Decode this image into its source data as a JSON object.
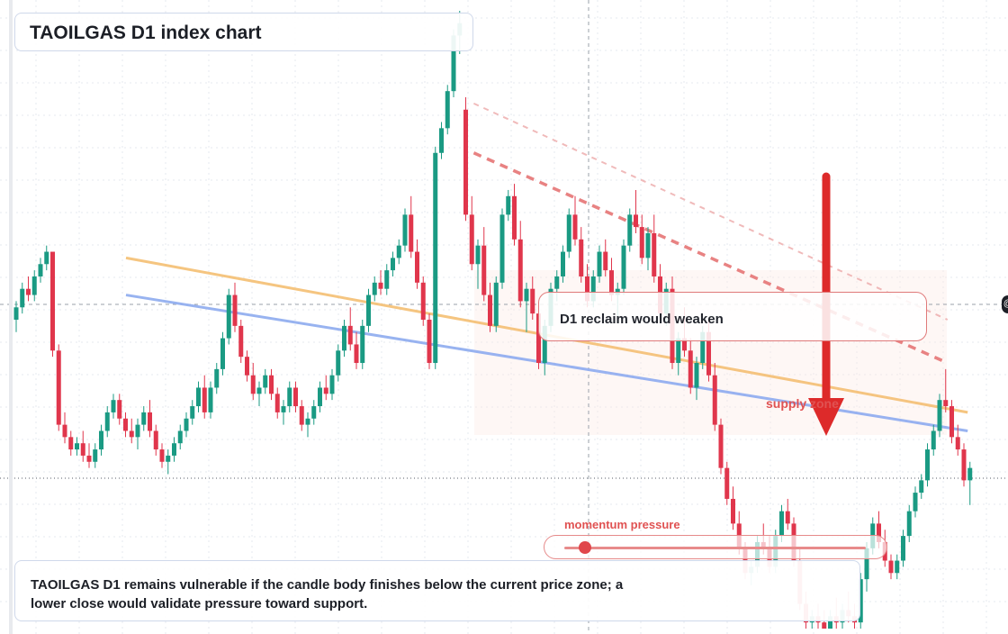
{
  "title": "TAOILGAS D1 index chart",
  "callout": {
    "text": "D1 reclaim would weaken"
  },
  "supply_label": "supply zone",
  "momentum": {
    "label": "momentum pressure",
    "level": 0.07
  },
  "bottom_text": "TAOILGAS D1 remains vulnerable if the candle body finishes below the current price zone; a lower close would validate pressure toward support.",
  "colors": {
    "up": "#1a9a83",
    "down": "#e0364c",
    "yellow_line": "#f5c27a",
    "blue_line": "#93aff0",
    "arrow": "#dd2a2a",
    "dash_red": "#e77c7c"
  },
  "chart_data": {
    "type": "candlestick",
    "title": "TAOILGAS D1 index chart",
    "ylim": [
      0,
      100
    ],
    "grid": true,
    "candles": [
      {
        "o": 50,
        "h": 53,
        "l": 48,
        "c": 52
      },
      {
        "o": 52,
        "h": 56,
        "l": 51,
        "c": 55
      },
      {
        "o": 55,
        "h": 57,
        "l": 53,
        "c": 54
      },
      {
        "o": 54,
        "h": 58,
        "l": 53,
        "c": 57
      },
      {
        "o": 57,
        "h": 60,
        "l": 56,
        "c": 59
      },
      {
        "o": 59,
        "h": 62,
        "l": 58,
        "c": 61
      },
      {
        "o": 61,
        "h": 60,
        "l": 44,
        "c": 45
      },
      {
        "o": 45,
        "h": 46,
        "l": 32,
        "c": 33
      },
      {
        "o": 33,
        "h": 35,
        "l": 30,
        "c": 31
      },
      {
        "o": 31,
        "h": 32,
        "l": 28,
        "c": 29
      },
      {
        "o": 29,
        "h": 31,
        "l": 28,
        "c": 30
      },
      {
        "o": 30,
        "h": 32,
        "l": 27,
        "c": 28
      },
      {
        "o": 28,
        "h": 30,
        "l": 26,
        "c": 27
      },
      {
        "o": 27,
        "h": 30,
        "l": 26,
        "c": 29
      },
      {
        "o": 29,
        "h": 33,
        "l": 28,
        "c": 32
      },
      {
        "o": 32,
        "h": 36,
        "l": 31,
        "c": 35
      },
      {
        "o": 35,
        "h": 38,
        "l": 34,
        "c": 37
      },
      {
        "o": 37,
        "h": 38,
        "l": 33,
        "c": 34
      },
      {
        "o": 34,
        "h": 35,
        "l": 31,
        "c": 32
      },
      {
        "o": 32,
        "h": 34,
        "l": 30,
        "c": 31
      },
      {
        "o": 31,
        "h": 34,
        "l": 29,
        "c": 33
      },
      {
        "o": 33,
        "h": 36,
        "l": 32,
        "c": 35
      },
      {
        "o": 35,
        "h": 37,
        "l": 31,
        "c": 32
      },
      {
        "o": 32,
        "h": 33,
        "l": 28,
        "c": 29
      },
      {
        "o": 29,
        "h": 30,
        "l": 26,
        "c": 27
      },
      {
        "o": 27,
        "h": 29,
        "l": 25,
        "c": 28
      },
      {
        "o": 28,
        "h": 31,
        "l": 27,
        "c": 30
      },
      {
        "o": 30,
        "h": 33,
        "l": 29,
        "c": 32
      },
      {
        "o": 32,
        "h": 35,
        "l": 31,
        "c": 34
      },
      {
        "o": 34,
        "h": 37,
        "l": 33,
        "c": 36
      },
      {
        "o": 36,
        "h": 40,
        "l": 35,
        "c": 39
      },
      {
        "o": 39,
        "h": 41,
        "l": 34,
        "c": 35
      },
      {
        "o": 35,
        "h": 40,
        "l": 34,
        "c": 39
      },
      {
        "o": 39,
        "h": 43,
        "l": 38,
        "c": 42
      },
      {
        "o": 42,
        "h": 48,
        "l": 41,
        "c": 47
      },
      {
        "o": 47,
        "h": 55,
        "l": 46,
        "c": 54
      },
      {
        "o": 54,
        "h": 56,
        "l": 48,
        "c": 49
      },
      {
        "o": 49,
        "h": 50,
        "l": 43,
        "c": 44
      },
      {
        "o": 44,
        "h": 45,
        "l": 40,
        "c": 41
      },
      {
        "o": 41,
        "h": 43,
        "l": 37,
        "c": 38
      },
      {
        "o": 38,
        "h": 40,
        "l": 36,
        "c": 39
      },
      {
        "o": 39,
        "h": 42,
        "l": 38,
        "c": 41
      },
      {
        "o": 41,
        "h": 42,
        "l": 37,
        "c": 38
      },
      {
        "o": 38,
        "h": 39,
        "l": 34,
        "c": 35
      },
      {
        "o": 35,
        "h": 37,
        "l": 33,
        "c": 36
      },
      {
        "o": 36,
        "h": 40,
        "l": 35,
        "c": 39
      },
      {
        "o": 39,
        "h": 40,
        "l": 35,
        "c": 36
      },
      {
        "o": 36,
        "h": 37,
        "l": 32,
        "c": 33
      },
      {
        "o": 33,
        "h": 35,
        "l": 31,
        "c": 34
      },
      {
        "o": 34,
        "h": 37,
        "l": 33,
        "c": 36
      },
      {
        "o": 36,
        "h": 40,
        "l": 35,
        "c": 39
      },
      {
        "o": 39,
        "h": 41,
        "l": 37,
        "c": 38
      },
      {
        "o": 38,
        "h": 42,
        "l": 37,
        "c": 41
      },
      {
        "o": 41,
        "h": 46,
        "l": 40,
        "c": 45
      },
      {
        "o": 45,
        "h": 50,
        "l": 44,
        "c": 49
      },
      {
        "o": 49,
        "h": 52,
        "l": 45,
        "c": 46
      },
      {
        "o": 46,
        "h": 48,
        "l": 42,
        "c": 43
      },
      {
        "o": 43,
        "h": 50,
        "l": 42,
        "c": 49
      },
      {
        "o": 49,
        "h": 55,
        "l": 48,
        "c": 54
      },
      {
        "o": 54,
        "h": 57,
        "l": 53,
        "c": 56
      },
      {
        "o": 56,
        "h": 58,
        "l": 54,
        "c": 55
      },
      {
        "o": 55,
        "h": 59,
        "l": 54,
        "c": 58
      },
      {
        "o": 58,
        "h": 61,
        "l": 57,
        "c": 60
      },
      {
        "o": 60,
        "h": 63,
        "l": 59,
        "c": 62
      },
      {
        "o": 62,
        "h": 68,
        "l": 61,
        "c": 67
      },
      {
        "o": 67,
        "h": 70,
        "l": 60,
        "c": 61
      },
      {
        "o": 61,
        "h": 63,
        "l": 55,
        "c": 56
      },
      {
        "o": 56,
        "h": 57,
        "l": 49,
        "c": 50
      },
      {
        "o": 50,
        "h": 51,
        "l": 42,
        "c": 43
      },
      {
        "o": 43,
        "h": 78,
        "l": 42,
        "c": 77
      },
      {
        "o": 77,
        "h": 82,
        "l": 76,
        "c": 81
      },
      {
        "o": 81,
        "h": 88,
        "l": 80,
        "c": 87
      },
      {
        "o": 87,
        "h": 97,
        "l": 86,
        "c": 96
      },
      {
        "o": 96,
        "h": 100,
        "l": 93,
        "c": 98
      },
      {
        "o": 84,
        "h": 86,
        "l": 66,
        "c": 67
      },
      {
        "o": 67,
        "h": 70,
        "l": 58,
        "c": 59
      },
      {
        "o": 59,
        "h": 63,
        "l": 55,
        "c": 62
      },
      {
        "o": 62,
        "h": 65,
        "l": 53,
        "c": 54
      },
      {
        "o": 54,
        "h": 56,
        "l": 48,
        "c": 49
      },
      {
        "o": 49,
        "h": 57,
        "l": 48,
        "c": 56
      },
      {
        "o": 56,
        "h": 68,
        "l": 55,
        "c": 67
      },
      {
        "o": 67,
        "h": 71,
        "l": 66,
        "c": 70
      },
      {
        "o": 70,
        "h": 72,
        "l": 62,
        "c": 63
      },
      {
        "o": 63,
        "h": 66,
        "l": 52,
        "c": 53
      },
      {
        "o": 53,
        "h": 56,
        "l": 48,
        "c": 55
      },
      {
        "o": 55,
        "h": 57,
        "l": 50,
        "c": 51
      },
      {
        "o": 51,
        "h": 52,
        "l": 42,
        "c": 43
      },
      {
        "o": 43,
        "h": 50,
        "l": 41,
        "c": 49
      },
      {
        "o": 49,
        "h": 56,
        "l": 48,
        "c": 55
      },
      {
        "o": 55,
        "h": 58,
        "l": 53,
        "c": 57
      },
      {
        "o": 57,
        "h": 62,
        "l": 56,
        "c": 61
      },
      {
        "o": 61,
        "h": 68,
        "l": 60,
        "c": 67
      },
      {
        "o": 67,
        "h": 70,
        "l": 62,
        "c": 63
      },
      {
        "o": 63,
        "h": 65,
        "l": 56,
        "c": 57
      },
      {
        "o": 57,
        "h": 59,
        "l": 52,
        "c": 53
      },
      {
        "o": 53,
        "h": 58,
        "l": 52,
        "c": 57
      },
      {
        "o": 57,
        "h": 62,
        "l": 56,
        "c": 61
      },
      {
        "o": 61,
        "h": 63,
        "l": 57,
        "c": 58
      },
      {
        "o": 58,
        "h": 60,
        "l": 53,
        "c": 54
      },
      {
        "o": 54,
        "h": 56,
        "l": 50,
        "c": 55
      },
      {
        "o": 55,
        "h": 63,
        "l": 54,
        "c": 62
      },
      {
        "o": 62,
        "h": 68,
        "l": 61,
        "c": 67
      },
      {
        "o": 67,
        "h": 71,
        "l": 64,
        "c": 65
      },
      {
        "o": 65,
        "h": 67,
        "l": 59,
        "c": 60
      },
      {
        "o": 60,
        "h": 65,
        "l": 58,
        "c": 64
      },
      {
        "o": 64,
        "h": 67,
        "l": 56,
        "c": 57
      },
      {
        "o": 57,
        "h": 59,
        "l": 50,
        "c": 51
      },
      {
        "o": 51,
        "h": 56,
        "l": 49,
        "c": 55
      },
      {
        "o": 55,
        "h": 57,
        "l": 42,
        "c": 43
      },
      {
        "o": 43,
        "h": 48,
        "l": 41,
        "c": 47
      },
      {
        "o": 47,
        "h": 52,
        "l": 44,
        "c": 45
      },
      {
        "o": 45,
        "h": 47,
        "l": 38,
        "c": 39
      },
      {
        "o": 39,
        "h": 44,
        "l": 37,
        "c": 43
      },
      {
        "o": 43,
        "h": 49,
        "l": 42,
        "c": 48
      },
      {
        "o": 48,
        "h": 50,
        "l": 40,
        "c": 41
      },
      {
        "o": 41,
        "h": 43,
        "l": 32,
        "c": 33
      },
      {
        "o": 33,
        "h": 34,
        "l": 25,
        "c": 26
      },
      {
        "o": 26,
        "h": 27,
        "l": 20,
        "c": 21
      },
      {
        "o": 21,
        "h": 23,
        "l": 16,
        "c": 17
      },
      {
        "o": 17,
        "h": 19,
        "l": 12,
        "c": 13
      },
      {
        "o": 13,
        "h": 14,
        "l": 8,
        "c": 9
      },
      {
        "o": 9,
        "h": 11,
        "l": 7,
        "c": 10
      },
      {
        "o": 10,
        "h": 15,
        "l": 9,
        "c": 14
      },
      {
        "o": 14,
        "h": 17,
        "l": 12,
        "c": 13
      },
      {
        "o": 13,
        "h": 15,
        "l": 9,
        "c": 10
      },
      {
        "o": 10,
        "h": 16,
        "l": 9,
        "c": 15
      },
      {
        "o": 15,
        "h": 20,
        "l": 14,
        "c": 19
      },
      {
        "o": 19,
        "h": 21,
        "l": 16,
        "c": 17
      },
      {
        "o": 17,
        "h": 18,
        "l": 10,
        "c": 11
      },
      {
        "o": 11,
        "h": 13,
        "l": 3,
        "c": 4
      },
      {
        "o": 4,
        "h": 6,
        "l": 0,
        "c": 1
      },
      {
        "o": 1,
        "h": 3,
        "l": 0,
        "c": 2
      },
      {
        "o": 2,
        "h": 4,
        "l": 0,
        "c": 1
      },
      {
        "o": 1,
        "h": 3,
        "l": 0,
        "c": 0
      },
      {
        "o": 0,
        "h": 3,
        "l": 0,
        "c": 2
      },
      {
        "o": 2,
        "h": 5,
        "l": 0,
        "c": 1
      },
      {
        "o": 1,
        "h": 4,
        "l": 0,
        "c": 3
      },
      {
        "o": 3,
        "h": 6,
        "l": 1,
        "c": 2
      },
      {
        "o": 2,
        "h": 4,
        "l": 0,
        "c": 1
      },
      {
        "o": 1,
        "h": 9,
        "l": 0,
        "c": 8
      },
      {
        "o": 8,
        "h": 14,
        "l": 6,
        "c": 13
      },
      {
        "o": 13,
        "h": 18,
        "l": 12,
        "c": 17
      },
      {
        "o": 17,
        "h": 19,
        "l": 13,
        "c": 14
      },
      {
        "o": 14,
        "h": 16,
        "l": 10,
        "c": 11
      },
      {
        "o": 11,
        "h": 12,
        "l": 8,
        "c": 9
      },
      {
        "o": 9,
        "h": 12,
        "l": 8,
        "c": 11
      },
      {
        "o": 11,
        "h": 16,
        "l": 10,
        "c": 15
      },
      {
        "o": 15,
        "h": 20,
        "l": 14,
        "c": 19
      },
      {
        "o": 19,
        "h": 23,
        "l": 18,
        "c": 22
      },
      {
        "o": 22,
        "h": 25,
        "l": 21,
        "c": 24
      },
      {
        "o": 24,
        "h": 30,
        "l": 23,
        "c": 29
      },
      {
        "o": 29,
        "h": 33,
        "l": 28,
        "c": 32
      },
      {
        "o": 32,
        "h": 38,
        "l": 31,
        "c": 37
      },
      {
        "o": 37,
        "h": 42,
        "l": 35,
        "c": 36
      },
      {
        "o": 36,
        "h": 37,
        "l": 30,
        "c": 31
      },
      {
        "o": 31,
        "h": 33,
        "l": 28,
        "c": 29
      },
      {
        "o": 29,
        "h": 30,
        "l": 23,
        "c": 24
      },
      {
        "o": 24,
        "h": 27,
        "l": 20,
        "c": 26
      }
    ],
    "lines": [
      {
        "name": "",
        "style": "solid",
        "color": "#f5c27a",
        "points": [
          [
            0.125,
            60
          ],
          [
            0.96,
            35
          ]
        ]
      },
      {
        "name": "",
        "style": "solid",
        "color": "#93aff0",
        "points": [
          [
            0.125,
            54
          ],
          [
            0.96,
            32
          ]
        ]
      },
      {
        "name": "",
        "style": "dashed",
        "color": "#e77c7c",
        "points": [
          [
            0.47,
            77
          ],
          [
            0.94,
            43
          ]
        ]
      },
      {
        "name": "",
        "style": "dashed",
        "color": "#eda9a9",
        "points": [
          [
            0.47,
            85
          ],
          [
            0.94,
            50
          ]
        ]
      }
    ],
    "reference_levels": [
      54,
      23
    ]
  }
}
